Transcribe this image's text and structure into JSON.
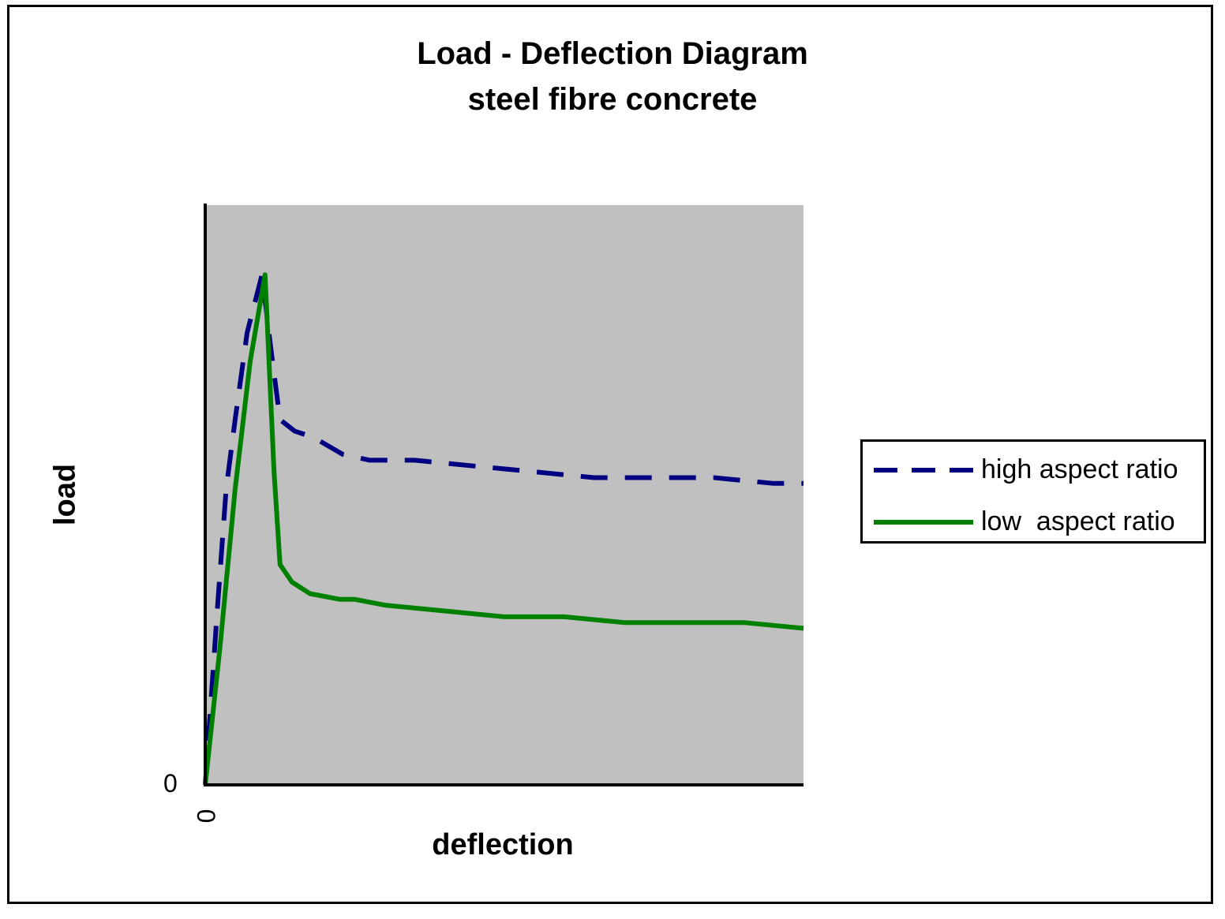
{
  "chart_data": {
    "type": "line",
    "title": "Load - Deflection Diagram",
    "subtitle": "steel fibre concrete",
    "xlabel": "deflection",
    "ylabel": "load",
    "x_ticks": [
      "0"
    ],
    "y_ticks": [
      "0"
    ],
    "xlim": [
      0,
      100
    ],
    "ylim": [
      0,
      100
    ],
    "grid": false,
    "legend_position": "right",
    "plot_background": "#c0c0c0",
    "series": [
      {
        "name": "high aspect ratio",
        "color": "#000080",
        "style": "dashed",
        "x": [
          0,
          2,
          3.5,
          5,
          7,
          9.5,
          11,
          12.5,
          15,
          18,
          23,
          27.5,
          35,
          45,
          55,
          65,
          75,
          85,
          95,
          100
        ],
        "y": [
          0,
          30,
          51,
          63,
          78,
          88,
          75,
          63,
          61,
          60,
          57,
          56,
          56,
          55,
          54,
          53,
          53,
          53,
          52,
          52
        ]
      },
      {
        "name": "low  aspect ratio",
        "color": "#008000",
        "style": "solid",
        "x": [
          0,
          2.5,
          5,
          7.5,
          10,
          11.5,
          12.5,
          14.5,
          17.5,
          22.5,
          25,
          30,
          40,
          50,
          60,
          70,
          80,
          90,
          100
        ],
        "y": [
          0,
          24,
          51,
          73,
          88,
          54,
          38,
          35,
          33,
          32,
          32,
          31,
          30,
          29,
          29,
          28,
          28,
          28,
          27
        ]
      }
    ]
  }
}
